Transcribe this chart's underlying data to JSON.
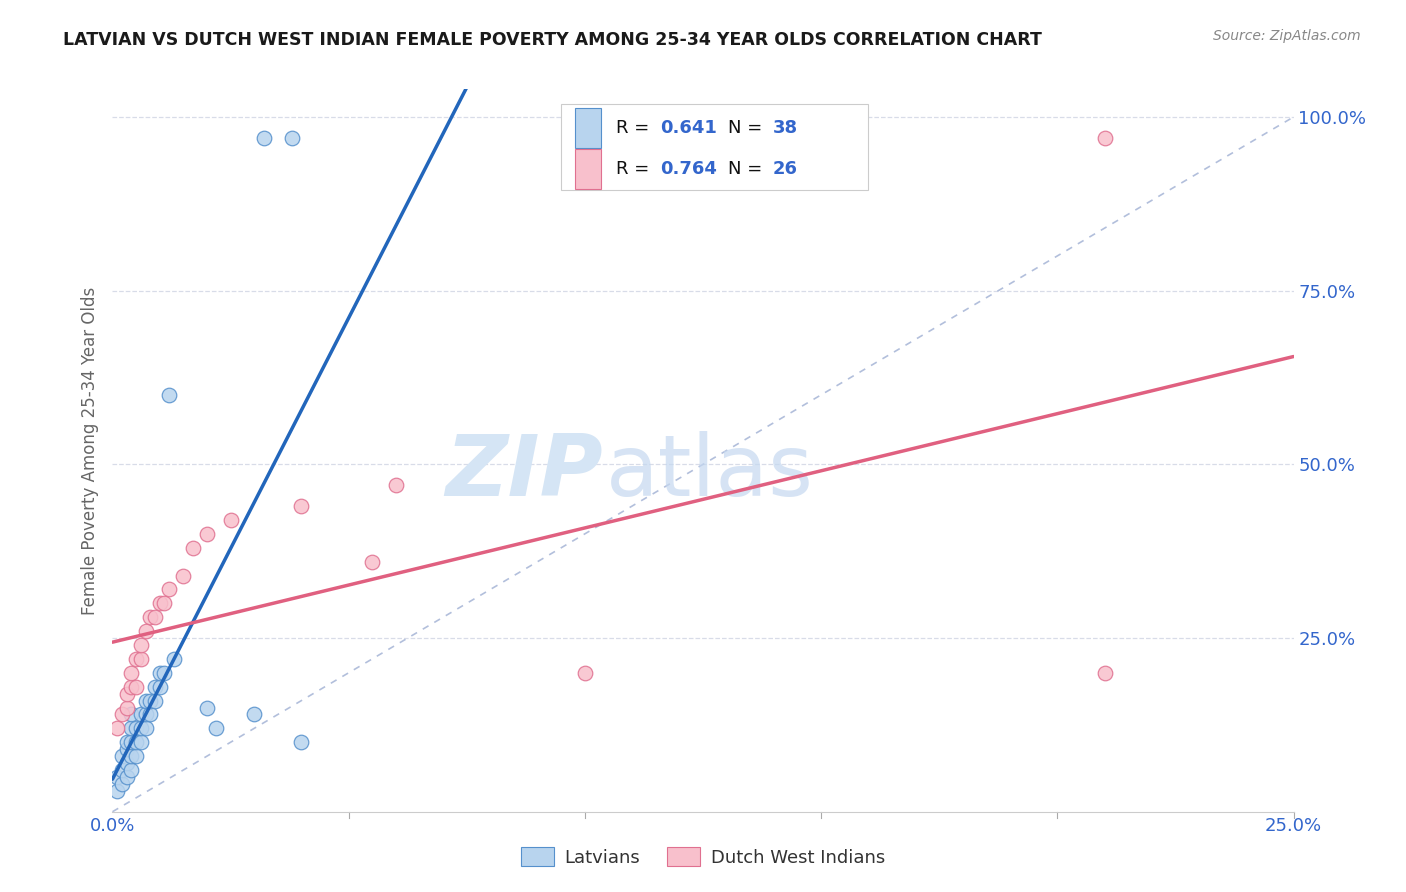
{
  "title": "LATVIAN VS DUTCH WEST INDIAN FEMALE POVERTY AMONG 25-34 YEAR OLDS CORRELATION CHART",
  "source": "Source: ZipAtlas.com",
  "ylabel": "Female Poverty Among 25-34 Year Olds",
  "xlim": [
    0.0,
    0.25
  ],
  "ylim": [
    0.0,
    1.04
  ],
  "latvian_R": 0.641,
  "latvian_N": 38,
  "dutch_R": 0.764,
  "dutch_N": 26,
  "latvian_color": "#b8d4ee",
  "latvian_edge_color": "#5590cc",
  "latvian_line_color": "#2266bb",
  "dutch_color": "#f8c0cc",
  "dutch_edge_color": "#e07090",
  "dutch_line_color": "#e06080",
  "ref_line_color": "#aab8d8",
  "grid_color": "#d8dce8",
  "watermark_zip": "ZIP",
  "watermark_atlas": "atlas",
  "watermark_color_zip": "#dce8f5",
  "watermark_color_atlas": "#c8daf0",
  "title_color": "#1a1a1a",
  "source_color": "#888888",
  "axis_tick_color": "#3366cc",
  "ylabel_color": "#666666",
  "bg_color": "#ffffff",
  "legend_items": [
    "Latvians",
    "Dutch West Indians"
  ],
  "ytick_vals": [
    0.25,
    0.5,
    0.75,
    1.0
  ],
  "ytick_labels": [
    "25.0%",
    "50.0%",
    "75.0%",
    "100.0%"
  ],
  "xtick_vals": [
    0.0,
    0.05,
    0.1,
    0.15,
    0.2,
    0.25
  ],
  "xtick_labels": [
    "0.0%",
    "",
    "",
    "",
    "",
    "25.0%"
  ],
  "latvian_x": [
    0.001,
    0.001,
    0.002,
    0.002,
    0.002,
    0.003,
    0.003,
    0.003,
    0.003,
    0.004,
    0.004,
    0.004,
    0.004,
    0.004,
    0.005,
    0.005,
    0.005,
    0.006,
    0.006,
    0.006,
    0.007,
    0.007,
    0.007,
    0.008,
    0.008,
    0.009,
    0.009,
    0.01,
    0.01,
    0.011,
    0.012,
    0.013,
    0.02,
    0.022,
    0.03,
    0.04,
    0.032,
    0.038
  ],
  "latvian_y": [
    0.03,
    0.05,
    0.04,
    0.06,
    0.08,
    0.05,
    0.07,
    0.09,
    0.1,
    0.06,
    0.08,
    0.1,
    0.12,
    0.14,
    0.08,
    0.1,
    0.12,
    0.1,
    0.12,
    0.14,
    0.12,
    0.14,
    0.16,
    0.14,
    0.16,
    0.16,
    0.18,
    0.18,
    0.2,
    0.2,
    0.6,
    0.22,
    0.15,
    0.12,
    0.14,
    0.1,
    0.97,
    0.97
  ],
  "dutch_x": [
    0.001,
    0.002,
    0.003,
    0.003,
    0.004,
    0.004,
    0.005,
    0.005,
    0.006,
    0.006,
    0.007,
    0.008,
    0.009,
    0.01,
    0.011,
    0.012,
    0.015,
    0.017,
    0.02,
    0.025,
    0.04,
    0.055,
    0.06,
    0.1,
    0.21,
    0.21
  ],
  "dutch_y": [
    0.12,
    0.14,
    0.15,
    0.17,
    0.18,
    0.2,
    0.18,
    0.22,
    0.22,
    0.24,
    0.26,
    0.28,
    0.28,
    0.3,
    0.3,
    0.32,
    0.34,
    0.38,
    0.4,
    0.42,
    0.44,
    0.36,
    0.47,
    0.2,
    0.97,
    0.2
  ]
}
